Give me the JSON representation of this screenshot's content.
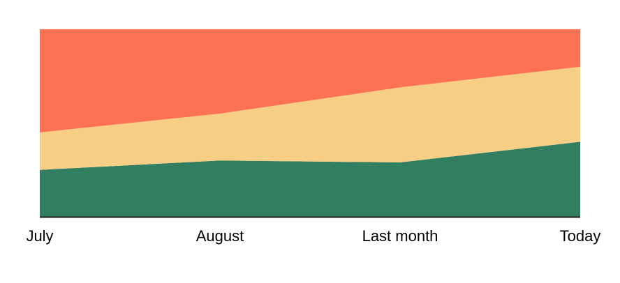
{
  "chart_data": {
    "type": "area",
    "stacked": true,
    "normalized": true,
    "categories": [
      "July",
      "August",
      "Last month",
      "Today"
    ],
    "series": [
      {
        "values": [
          25,
          30,
          29,
          40
        ],
        "color": "#317f60"
      },
      {
        "values": [
          20,
          25,
          40,
          40
        ],
        "color": "#f6ce86"
      },
      {
        "values": [
          55,
          45,
          31,
          20
        ],
        "color": "#fd7253"
      }
    ],
    "ylim": [
      0,
      100
    ],
    "grid": false,
    "legend": "none",
    "axis_color": "#1a1a1a"
  }
}
